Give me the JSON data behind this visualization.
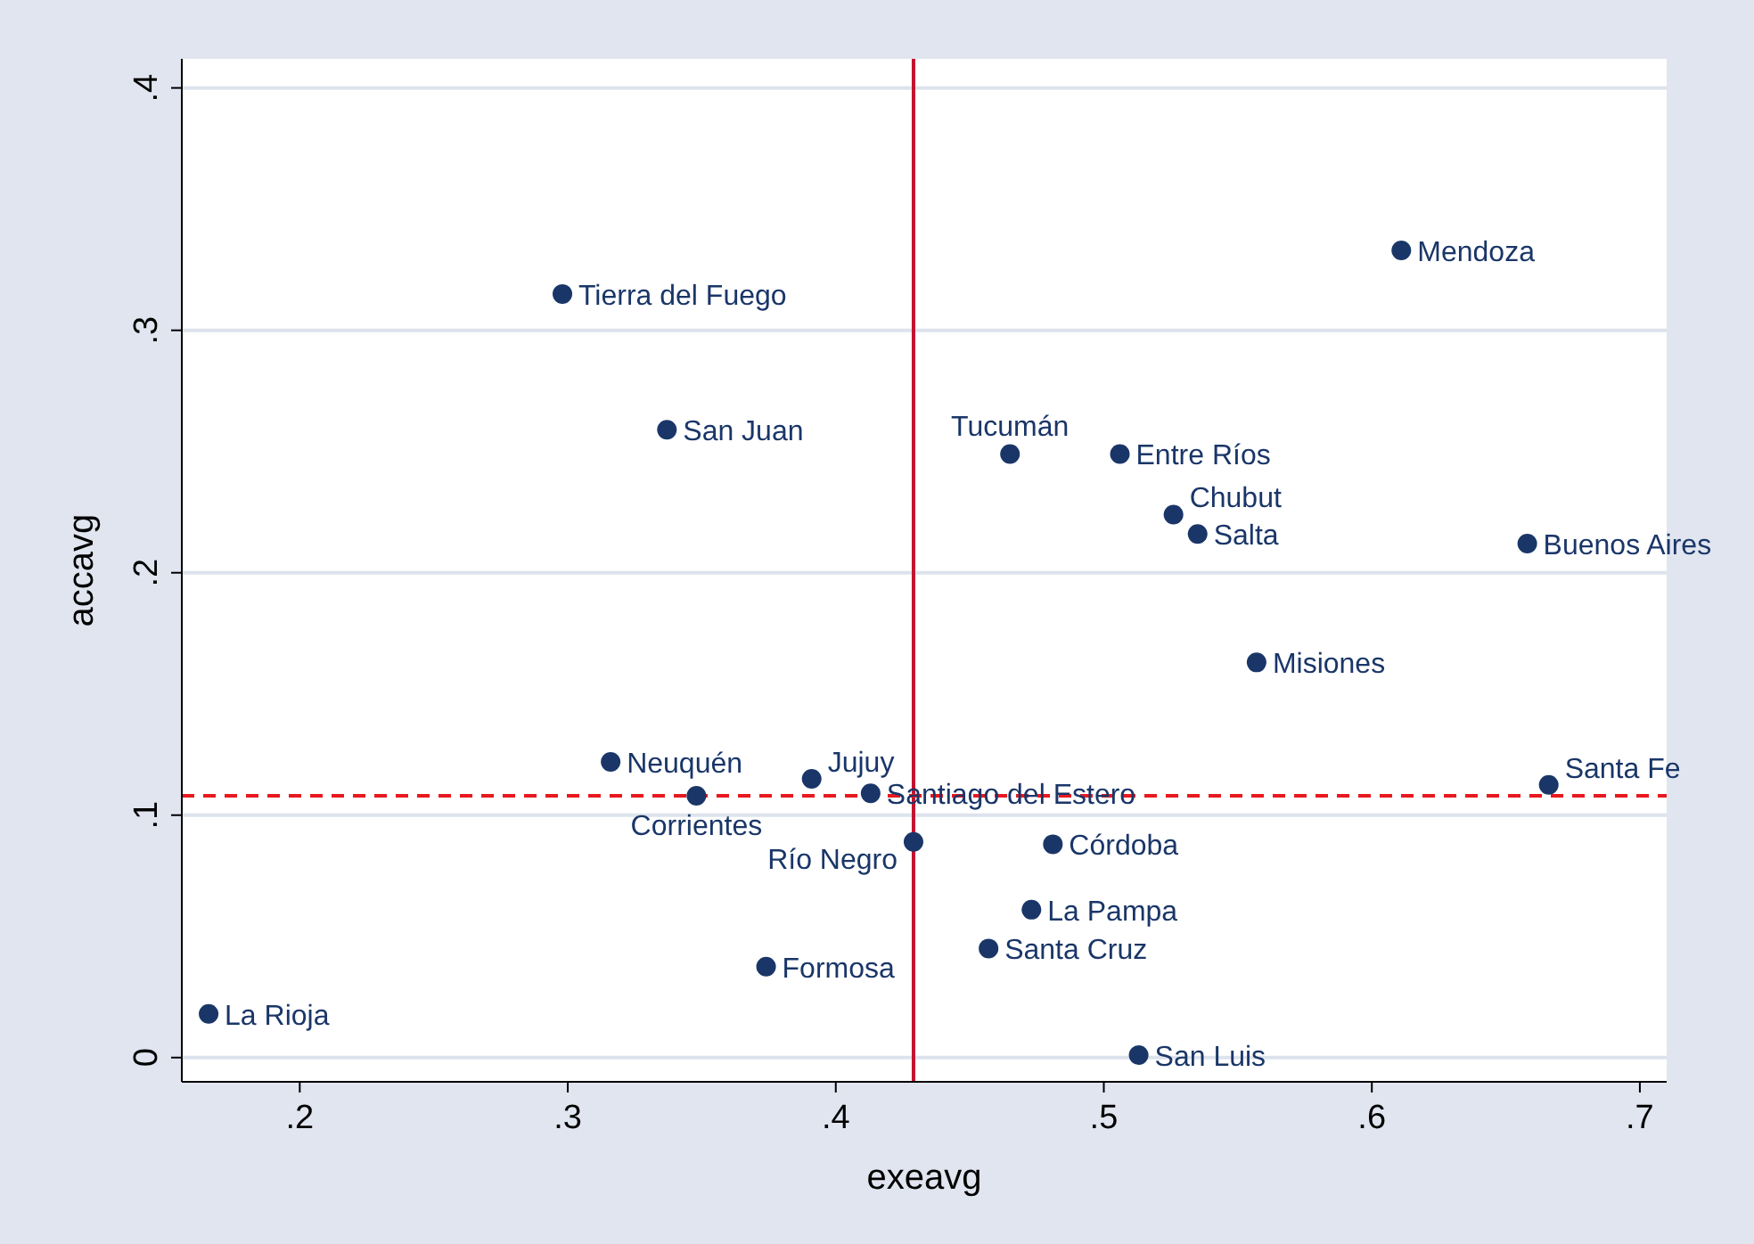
{
  "chart_data": {
    "type": "scatter",
    "xlabel": "exeavg",
    "ylabel": "accavg",
    "xlim": [
      0.156,
      0.71
    ],
    "ylim": [
      -0.01,
      0.412
    ],
    "xticks": [
      {
        "value": 0.2,
        "label": ".2"
      },
      {
        "value": 0.3,
        "label": ".3"
      },
      {
        "value": 0.4,
        "label": ".4"
      },
      {
        "value": 0.5,
        "label": ".5"
      },
      {
        "value": 0.6,
        "label": ".6"
      },
      {
        "value": 0.7,
        "label": ".7"
      }
    ],
    "yticks": [
      0,
      {
        "value": 0.1,
        "label": ".1"
      },
      {
        "value": 0.2,
        "label": ".2"
      },
      {
        "value": 0.3,
        "label": ".3"
      },
      {
        "value": 0.4,
        "label": ".4"
      }
    ],
    "grid": "y",
    "marker": "circle",
    "series": [
      {
        "color": "#1a3668",
        "x": [
          0.611,
          0.298,
          0.337,
          0.465,
          0.506,
          0.526,
          0.535,
          0.658,
          0.557,
          0.316,
          0.391,
          0.413,
          0.348,
          0.666,
          0.429,
          0.481,
          0.473,
          0.457,
          0.374,
          0.166,
          0.513
        ],
        "values": [
          0.333,
          0.315,
          0.259,
          0.249,
          0.249,
          0.224,
          0.216,
          0.212,
          0.163,
          0.122,
          0.115,
          0.109,
          0.108,
          0.1125,
          0.089,
          0.088,
          0.061,
          0.045,
          0.0375,
          0.018,
          0.001
        ]
      }
    ],
    "annotations": [
      {
        "text": "Mendoza",
        "x": 0.611,
        "y": 0.333
      },
      {
        "text": "Tierra del Fuego",
        "x": 0.298,
        "y": 0.315
      },
      {
        "text": "San Juan",
        "x": 0.337,
        "y": 0.259
      },
      {
        "text": "Tucumán",
        "x": 0.465,
        "y": 0.249
      },
      {
        "text": "Entre Ríos",
        "x": 0.506,
        "y": 0.249
      },
      {
        "text": "Chubut",
        "x": 0.526,
        "y": 0.224
      },
      {
        "text": "Salta",
        "x": 0.535,
        "y": 0.216
      },
      {
        "text": "Buenos Aires",
        "x": 0.658,
        "y": 0.212
      },
      {
        "text": "Misiones",
        "x": 0.557,
        "y": 0.163
      },
      {
        "text": "Neuquén",
        "x": 0.316,
        "y": 0.122
      },
      {
        "text": "Jujuy",
        "x": 0.391,
        "y": 0.115
      },
      {
        "text": "Santiago del Estero",
        "x": 0.413,
        "y": 0.109
      },
      {
        "text": "Corrientes",
        "x": 0.348,
        "y": 0.108
      },
      {
        "text": "Santa Fe",
        "x": 0.666,
        "y": 0.1125
      },
      {
        "text": "Río Negro",
        "x": 0.429,
        "y": 0.089
      },
      {
        "text": "Córdoba",
        "x": 0.481,
        "y": 0.088
      },
      {
        "text": "La Pampa",
        "x": 0.473,
        "y": 0.061
      },
      {
        "text": "Santa Cruz",
        "x": 0.457,
        "y": 0.045
      },
      {
        "text": "Formosa",
        "x": 0.374,
        "y": 0.0375
      },
      {
        "text": "La Rioja",
        "x": 0.166,
        "y": 0.018
      },
      {
        "text": "San Luis",
        "x": 0.513,
        "y": 0.001
      }
    ],
    "ref_lines": [
      {
        "axis": "x",
        "value": 0.429,
        "color": "#c4122f",
        "line_style": "solid"
      },
      {
        "axis": "y",
        "value": 0.108,
        "color": "#e8191f",
        "line_style": "dashed"
      }
    ]
  }
}
